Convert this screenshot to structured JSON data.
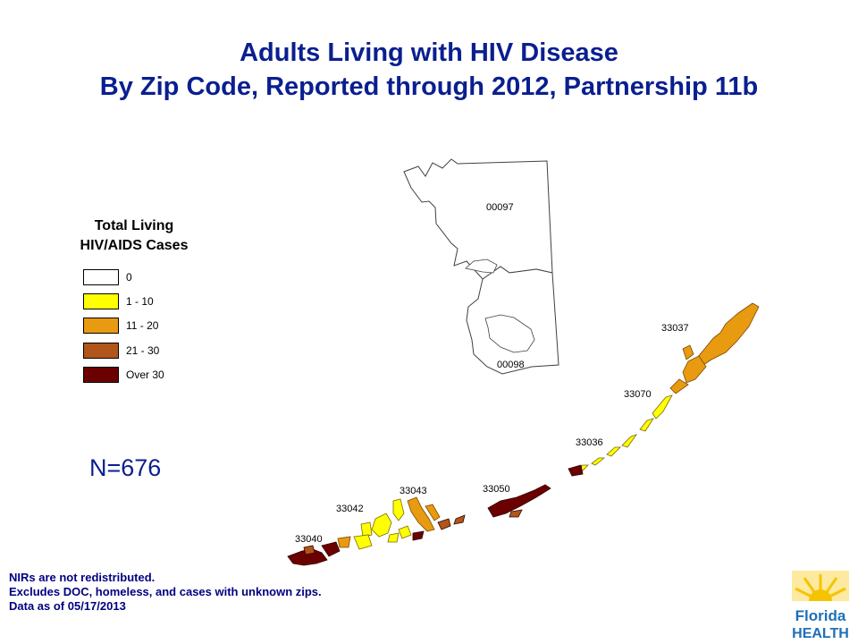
{
  "title": {
    "line1": "Adults Living with HIV Disease",
    "line2": "By Zip Code, Reported through 2012, Partnership 11b"
  },
  "legend": {
    "title_line1": "Total Living",
    "title_line2": "HIV/AIDS Cases",
    "items": [
      {
        "label": "0",
        "color": "#ffffff"
      },
      {
        "label": "1 - 10",
        "color": "#ffff00"
      },
      {
        "label": "11 - 20",
        "color": "#e89a10"
      },
      {
        "label": "21 - 30",
        "color": "#b0561a"
      },
      {
        "label": "Over 30",
        "color": "#6b0000"
      }
    ]
  },
  "total": "N=676",
  "zip_labels": {
    "z00097": "00097",
    "z00098": "00098",
    "z33037": "33037",
    "z33070": "33070",
    "z33036": "33036",
    "z33050": "33050",
    "z33043": "33043",
    "z33042": "33042",
    "z33040": "33040"
  },
  "notes": {
    "line1": "NIRs are not redistributed.",
    "line2": "Excludes DOC, homeless, and cases with unknown zips.",
    "line3": "Data as of 05/17/2013"
  },
  "logo": {
    "line1": "Florida",
    "line2": "HEALTH",
    "colors": {
      "sun": "#f5c400",
      "sky": "#fde9a0",
      "text": "#1d6fb8"
    }
  }
}
